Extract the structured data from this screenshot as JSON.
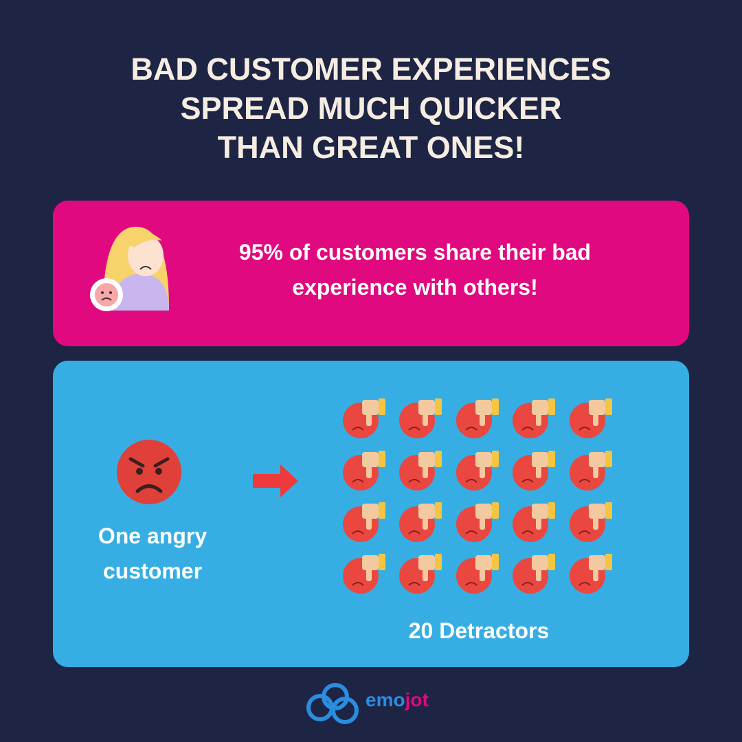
{
  "header": {
    "title_lines": [
      "BAD CUSTOMER EXPERIENCES",
      "SPREAD MUCH QUICKER",
      "THAN GREAT ONES!"
    ]
  },
  "stat_card": {
    "text_lines": [
      "95% of customers share their bad",
      "experience with others!"
    ]
  },
  "spread_card": {
    "source_lines": [
      "One angry",
      "customer"
    ],
    "result": "20 Detractors"
  },
  "logo": {
    "parts": [
      "emo",
      "jot"
    ]
  }
}
